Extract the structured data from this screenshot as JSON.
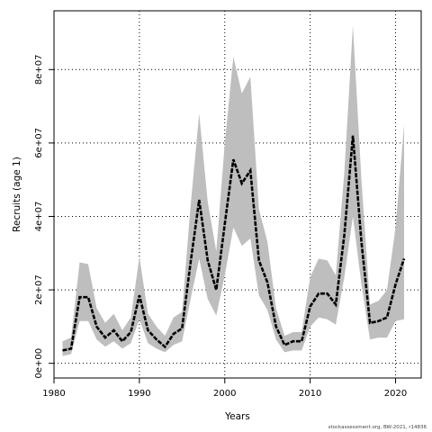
{
  "chart_data": {
    "type": "area",
    "xlabel": "Years",
    "ylabel": "Recruits (age 1)",
    "xlim": [
      1980,
      2023
    ],
    "ylim": [
      -4000000,
      96000000
    ],
    "x_ticks": [
      1980,
      1990,
      2000,
      2010,
      2020
    ],
    "x_tick_labels": [
      "1980",
      "1990",
      "2000",
      "2010",
      "2020"
    ],
    "y_ticks": [
      0,
      20000000,
      40000000,
      60000000,
      80000000
    ],
    "y_tick_labels": [
      "0e+00",
      "2e+07",
      "4e+07",
      "6e+07",
      "8e+07"
    ],
    "grid": true,
    "years": [
      1981,
      1982,
      1983,
      1984,
      1985,
      1986,
      1987,
      1988,
      1989,
      1990,
      1991,
      1992,
      1993,
      1994,
      1995,
      1996,
      1997,
      1998,
      1999,
      2000,
      2001,
      2002,
      2003,
      2004,
      2005,
      2006,
      2007,
      2008,
      2009,
      2010,
      2011,
      2012,
      2013,
      2014,
      2015,
      2016,
      2017,
      2018,
      2019,
      2020,
      2021
    ],
    "series": [
      {
        "values": [
          3500000.0,
          4000000.0,
          18000000.0,
          18000000.0,
          10000000.0,
          7000000.0,
          9000000.0,
          6000000.0,
          8500000.0,
          18500000.0,
          9000000.0,
          6500000.0,
          4500000.0,
          8000000.0,
          9500000.0,
          27500000.0,
          44500000.0,
          28000000.0,
          20000000.0,
          38000000.0,
          55500000.0,
          49000000.0,
          52500000.0,
          28000000.0,
          22000000.0,
          10000000.0,
          5000000.0,
          6000000.0,
          6000000.0,
          15500000.0,
          19000000.0,
          19000000.0,
          16000000.0,
          35000000.0,
          62000000.0,
          33000000.0,
          11000000.0,
          11500000.0,
          12500000.0,
          21500000.0,
          28500000.0
        ]
      }
    ],
    "ci_upper": [
      6000000.0,
      7000000.0,
      27500000.0,
      27000000.0,
      15000000.0,
      11000000.0,
      13500000.0,
      9000000.0,
      12500000.0,
      29000000.0,
      13500000.0,
      10000000.0,
      7500000.0,
      12500000.0,
      14000000.0,
      43000000.0,
      68000000.0,
      44000000.0,
      30500000.0,
      60000000.0,
      83500000.0,
      73500000.0,
      78000000.0,
      42000000.0,
      33000000.0,
      15000000.0,
      7500000.0,
      8500000.0,
      8500000.0,
      23500000.0,
      28500000.0,
      28000000.0,
      24000000.0,
      52000000.0,
      92000000.0,
      50000000.0,
      16000000.0,
      17000000.0,
      20000000.0,
      37000000.0,
      65000000.0
    ],
    "ci_lower": [
      2000000.0,
      2500000.0,
      11500000.0,
      11500000.0,
      6500000.0,
      4500000.0,
      6000000.0,
      4000000.0,
      5500000.0,
      12000000.0,
      5500000.0,
      4000000.0,
      3000000.0,
      5000000.0,
      6000000.0,
      17500000.0,
      28500000.0,
      17500000.0,
      13000000.0,
      24000000.0,
      37000000.0,
      32000000.0,
      34000000.0,
      18500000.0,
      14500000.0,
      6500000.0,
      3000000.0,
      3500000.0,
      3500000.0,
      10000000.0,
      12500000.0,
      12000000.0,
      10500000.0,
      23500000.0,
      40000000.0,
      21500000.0,
      6500000.0,
      7000000.0,
      7000000.0,
      11500000.0,
      12000000.0
    ],
    "colors": {
      "band": "#bebebe",
      "line": "#000000",
      "grid": "#000000"
    }
  },
  "credit": "stockassessment.org, BW-2021, r14836"
}
